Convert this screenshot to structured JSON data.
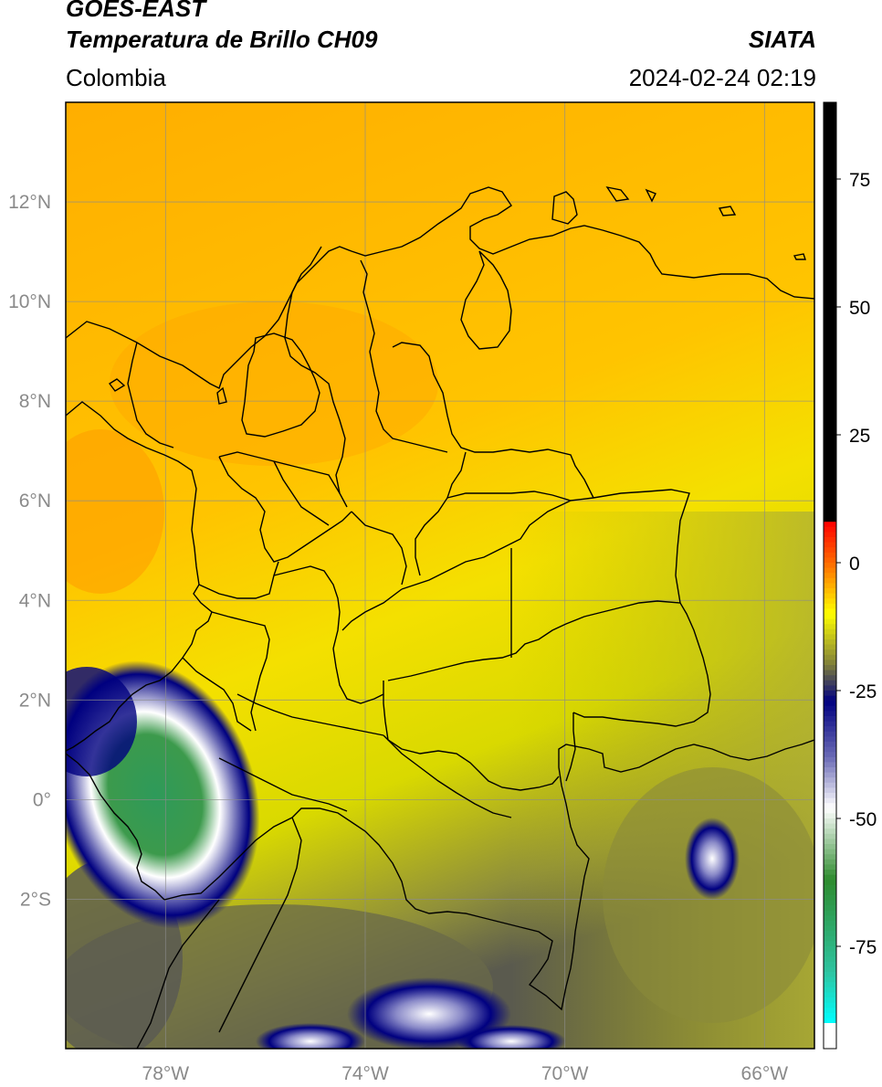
{
  "header": {
    "satellite": "GOES-EAST",
    "product": "Temperatura de Brillo CH09",
    "organization": "SIATA",
    "region": "Colombia",
    "datetime": "2024-02-24 02:19"
  },
  "map": {
    "lon_range": [
      -80,
      -65
    ],
    "lat_range": [
      -5,
      14
    ],
    "lat_ticks": [
      {
        "value": 12,
        "label": "12°N"
      },
      {
        "value": 10,
        "label": "10°N"
      },
      {
        "value": 8,
        "label": "8°N"
      },
      {
        "value": 6,
        "label": "6°N"
      },
      {
        "value": 4,
        "label": "4°N"
      },
      {
        "value": 2,
        "label": "2°N"
      },
      {
        "value": 0,
        "label": "0°"
      },
      {
        "value": -2,
        "label": "2°S"
      }
    ],
    "lon_ticks": [
      {
        "value": -78,
        "label": "78°W"
      },
      {
        "value": -74,
        "label": "74°W"
      },
      {
        "value": -70,
        "label": "70°W"
      },
      {
        "value": -66,
        "label": "66°W"
      }
    ],
    "grid": true
  },
  "colorbar": {
    "range": [
      -95,
      90
    ],
    "ticks": [
      {
        "value": 75,
        "label": "75"
      },
      {
        "value": 50,
        "label": "50"
      },
      {
        "value": 25,
        "label": "25"
      },
      {
        "value": 0,
        "label": "0"
      },
      {
        "value": -25,
        "label": "-25"
      },
      {
        "value": -50,
        "label": "-50"
      },
      {
        "value": -75,
        "label": "-75"
      }
    ],
    "stops": [
      {
        "value": 90,
        "color": "#000000"
      },
      {
        "value": 8,
        "color": "#000000"
      },
      {
        "value": 7.9,
        "color": "#ff0000"
      },
      {
        "value": 0,
        "color": "#ff6a00"
      },
      {
        "value": -10,
        "color": "#ffff00"
      },
      {
        "value": -20,
        "color": "#7d7d3a"
      },
      {
        "value": -27,
        "color": "#000080"
      },
      {
        "value": -38,
        "color": "#6a6ab5"
      },
      {
        "value": -48,
        "color": "#ffffff"
      },
      {
        "value": -62,
        "color": "#2e8b2e"
      },
      {
        "value": -80,
        "color": "#2ec4a0"
      },
      {
        "value": -90,
        "color": "#00ffff"
      },
      {
        "value": -90.1,
        "color": "#ffffff"
      },
      {
        "value": -95,
        "color": "#ffffff"
      }
    ]
  }
}
